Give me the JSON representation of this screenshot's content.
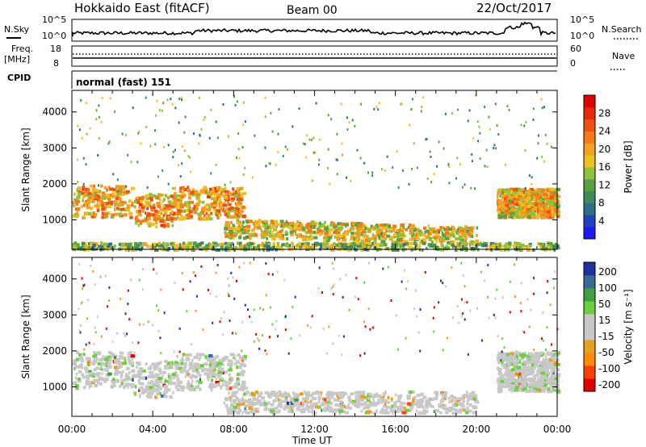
{
  "header": {
    "station": "Hokkaido East (fitACF)",
    "beam": "Beam 00",
    "date": "22/Oct/2017"
  },
  "top_panels": {
    "nsky_label": "N.Sky",
    "nsky_ticks": [
      "10^5",
      "10^0"
    ],
    "nsearch_label": "N.Search",
    "nsearch_ticks": [
      "10^5",
      "10^0"
    ],
    "freq_label": "Freq.",
    "freq_unit": "[MHz]",
    "freq_ticks": [
      "18",
      "8"
    ],
    "nave_label": "Nave",
    "nave_ticks": [
      "60",
      "0"
    ],
    "cpid_label": "CPID",
    "cpid_value": "normal (fast) 151"
  },
  "chart_data": [
    {
      "type": "heatmap",
      "panel": "power",
      "ylabel": "Slant Range [km]",
      "xlabel": "",
      "x_ticks": [
        "00:00",
        "04:00",
        "08:00",
        "12:00",
        "16:00",
        "20:00",
        "00:00"
      ],
      "xlim_hours": [
        0,
        24
      ],
      "y_ticks": [
        1000,
        2000,
        3000,
        4000
      ],
      "ylim": [
        180,
        4600
      ],
      "colorbar": {
        "label": "Power [dB]",
        "ticks": [
          "4",
          "8",
          "12",
          "16",
          "20",
          "24",
          "28"
        ],
        "range": [
          0,
          32
        ],
        "colors": [
          "#1a1aff",
          "#2040c0",
          "#2d6e8a",
          "#3e8a5a",
          "#5aa040",
          "#8ec23a",
          "#f0c020",
          "#f5a020",
          "#f57a18",
          "#f05010",
          "#e82a08",
          "#e00000"
        ]
      },
      "features": [
        {
          "region": "main F-region band",
          "t": [
            0.0,
            8.5
          ],
          "range_km": [
            1000,
            1900
          ],
          "power_db": 28
        },
        {
          "region": "lower band",
          "t": [
            7.5,
            20.0
          ],
          "range_km": [
            400,
            900
          ],
          "power_db": 24
        },
        {
          "region": "evening band",
          "t": [
            21.0,
            24.0
          ],
          "range_km": [
            1100,
            1900
          ],
          "power_db": 26
        },
        {
          "region": "near range",
          "t": [
            0.0,
            24.0
          ],
          "range_km": [
            200,
            400
          ],
          "power_db": 20
        }
      ]
    },
    {
      "type": "heatmap",
      "panel": "velocity",
      "ylabel": "Slant Range [km]",
      "xlabel": "Time UT",
      "x_ticks": [
        "00:00",
        "04:00",
        "08:00",
        "12:00",
        "16:00",
        "20:00",
        "00:00"
      ],
      "xlim_hours": [
        0,
        24
      ],
      "y_ticks": [
        1000,
        2000,
        3000,
        4000
      ],
      "ylim": [
        180,
        4600
      ],
      "colorbar": {
        "label": "Velocity [m s⁻¹]",
        "ticks": [
          "200",
          "100",
          "50",
          "15",
          "-15",
          "-50",
          "-100",
          "-200"
        ],
        "range": [
          -250,
          250
        ],
        "colors": [
          "#e00000",
          "#ff4000",
          "#ff8c00",
          "#e8a020",
          "#c8c8c8",
          "#c8c8c8",
          "#6ccf3c",
          "#40a040",
          "#3a6a9a",
          "#2030a0"
        ]
      },
      "features": [
        {
          "region": "ground scatter band",
          "t": [
            0.0,
            8.5
          ],
          "range_km": [
            900,
            1900
          ],
          "velocity": 0
        },
        {
          "region": "lower band",
          "t": [
            7.5,
            20.0
          ],
          "range_km": [
            300,
            900
          ],
          "velocity": -40
        },
        {
          "region": "evening band",
          "t": [
            21.0,
            24.0
          ],
          "range_km": [
            900,
            2000
          ],
          "velocity": 0
        }
      ]
    }
  ],
  "colors": {
    "frame": "#000000",
    "background": "#ffffff"
  }
}
